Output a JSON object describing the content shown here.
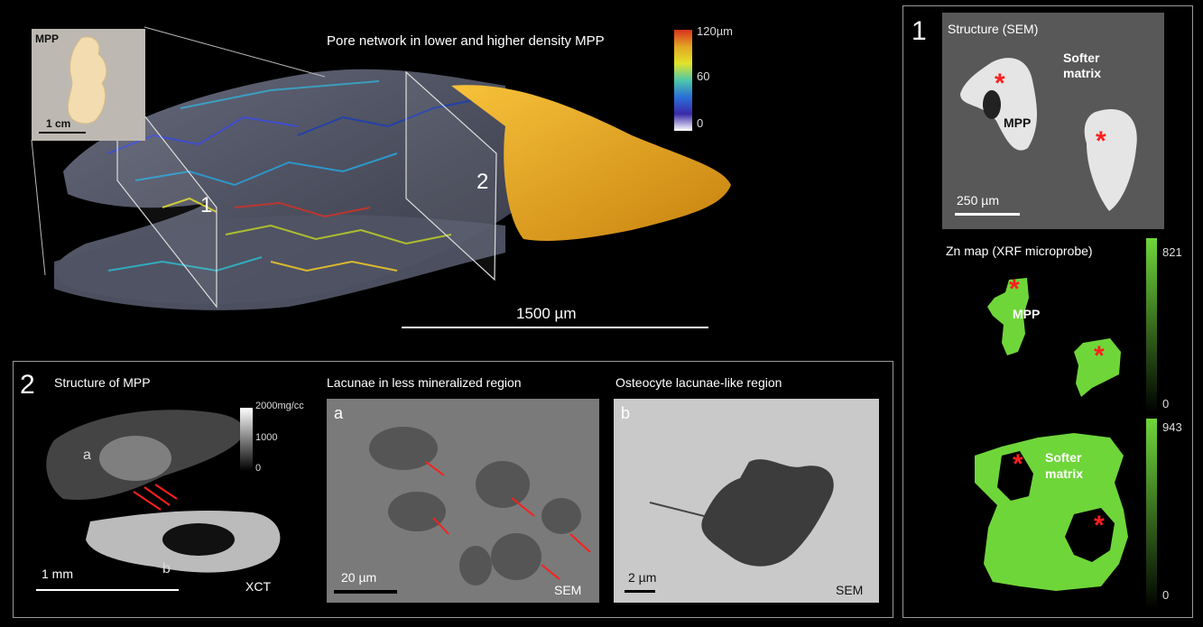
{
  "top": {
    "inset_label": "MPP",
    "inset_scale": "1 cm",
    "title": "Pore network in lower and higher density MPP",
    "colorbar": {
      "max": "120µm",
      "mid": "60",
      "min": "0"
    },
    "plane_1": "1",
    "plane_2": "2",
    "scale": "1500 µm"
  },
  "panel1": {
    "number": "1",
    "sem_title": "Structure (SEM)",
    "softer_matrix": "Softer matrix",
    "mpp": "MPP",
    "sem_scale": "250 µm",
    "zn_title": "Zn map (XRF microprobe)",
    "zn_mpp": "MPP",
    "zn_softer_matrix": "Softer matrix",
    "cb1_max": "821",
    "cb1_min": "0",
    "cb2_max": "943",
    "cb2_min": "0",
    "star": "*"
  },
  "panel2": {
    "number": "2",
    "xct_title": "Structure of MPP",
    "xct_cb_max": "2000mg/cc",
    "xct_cb_mid": "1000",
    "xct_cb_min": "0",
    "xct_a": "a",
    "xct_b": "b",
    "xct_scale": "1 mm",
    "xct_label": "XCT",
    "lac_title": "Lacunae in less mineralized region",
    "lac_letter": "a",
    "lac_scale": "20 µm",
    "lac_sem": "SEM",
    "ost_title": "Osteocyte lacunae-like region",
    "ost_letter": "b",
    "ost_scale": "2 µm",
    "ost_sem": "SEM"
  },
  "colors": {
    "accent_red": "#ff1e1e",
    "zn_green": "#6fd63a",
    "dense_orange": "#e8a419",
    "frame_gray": "#9a9a9a"
  }
}
